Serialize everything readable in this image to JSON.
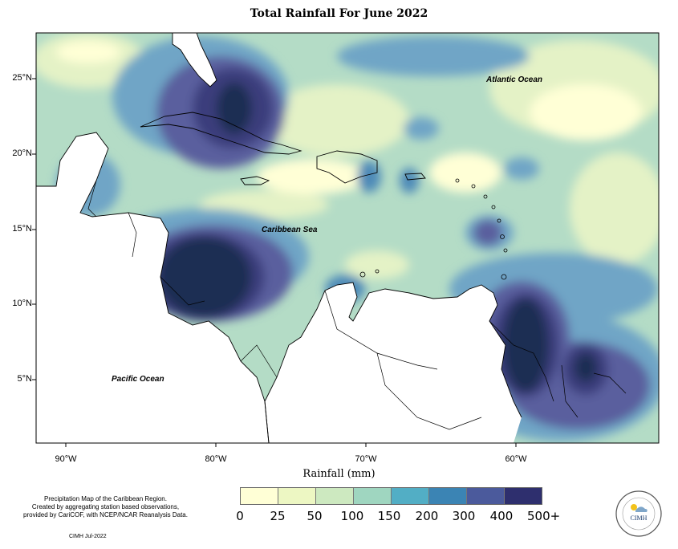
{
  "title": "Total Rainfall For June 2022",
  "lat_labels": [
    "25°N",
    "20°N",
    "15°N",
    "10°N",
    "5°N"
  ],
  "lon_labels": [
    "90°W",
    "80°W",
    "70°W",
    "60°W"
  ],
  "ocean_labels": {
    "atlantic": "Atlantic Ocean",
    "caribbean": "Caribbean Sea",
    "pacific": "Pacific Ocean"
  },
  "xaxis_title": "Rainfall (mm)",
  "legend": {
    "labels": [
      "0",
      "25",
      "50",
      "100",
      "150",
      "200",
      "300",
      "400",
      "500+"
    ],
    "colors": [
      "#ffffd6",
      "#edf7c3",
      "#cde9c0",
      "#9fd6c0",
      "#52aec5",
      "#3b84b4",
      "#4b5a9c",
      "#2e2f6e",
      "#172145"
    ]
  },
  "credit": {
    "line1": "Precipitation Map of the Caribbean Region.",
    "line2": "Created by aggregating station based observations,",
    "line3": "provided by CariCOF, with NCEP/NCAR Reanalysis Data."
  },
  "date_tag": "CIMH Jul-2022",
  "logo_text": "CIMH",
  "colors": {
    "pale": "#ffffd6",
    "light_green": "#e4f2c6",
    "sea_green": "#b4dcc6",
    "steel_blue": "#6fa5c6",
    "mid_blue": "#4d8ab8",
    "violet": "#5a5f9e",
    "deep_violet": "#3a3d7c",
    "navy": "#1f2d52",
    "land": "#ffffff"
  }
}
